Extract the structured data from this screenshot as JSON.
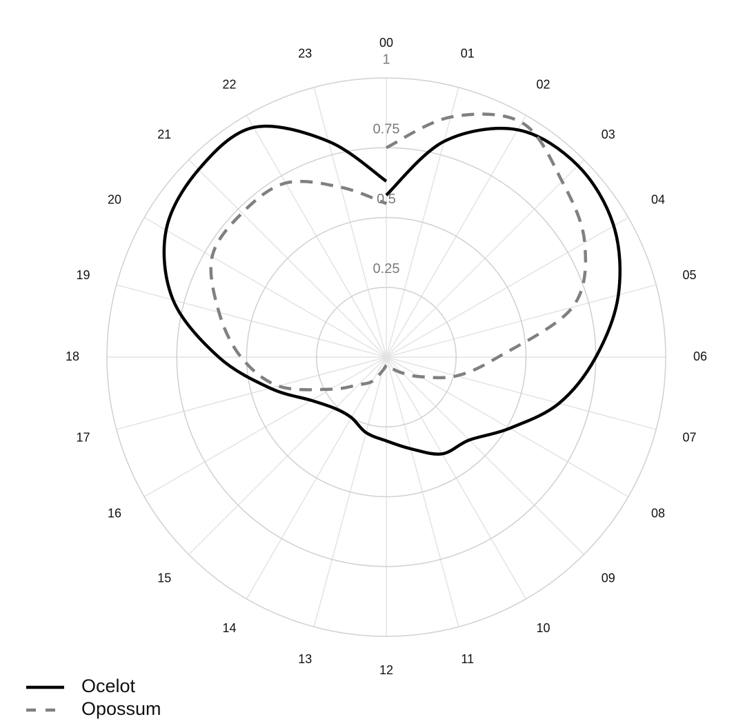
{
  "chart_data": {
    "type": "polar-line",
    "x": [
      0,
      1,
      2,
      3,
      4,
      5,
      6,
      7,
      8,
      9,
      10,
      11,
      12,
      13,
      14,
      15,
      16,
      17,
      18,
      19,
      20,
      21,
      22,
      23,
      24
    ],
    "xlim": [
      0,
      24
    ],
    "xticks": [
      {
        "value": 0,
        "label": "00"
      },
      {
        "value": 1,
        "label": "01"
      },
      {
        "value": 2,
        "label": "02"
      },
      {
        "value": 3,
        "label": "03"
      },
      {
        "value": 4,
        "label": "04"
      },
      {
        "value": 5,
        "label": "05"
      },
      {
        "value": 6,
        "label": "06"
      },
      {
        "value": 7,
        "label": "07"
      },
      {
        "value": 8,
        "label": "08"
      },
      {
        "value": 9,
        "label": "09"
      },
      10,
      11,
      12,
      13,
      14,
      15,
      16,
      17,
      18,
      19,
      20,
      21,
      22,
      23
    ],
    "ylim": [
      0,
      1
    ],
    "yticks": [
      0.25,
      0.5,
      0.75,
      1
    ],
    "grid": true,
    "legend": "bottom-left",
    "series": [
      {
        "name": "Ocelot",
        "color": "#000000",
        "dash": "solid",
        "values": [
          0.58,
          0.8,
          0.94,
          0.97,
          0.94,
          0.86,
          0.75,
          0.64,
          0.51,
          0.42,
          0.4,
          0.34,
          0.3,
          0.28,
          0.25,
          0.26,
          0.31,
          0.43,
          0.6,
          0.79,
          0.91,
          0.95,
          0.95,
          0.8,
          0.63
        ]
      },
      {
        "name": "Opossum",
        "color": "#808080",
        "dash": "dashed",
        "values": [
          0.75,
          0.89,
          0.97,
          0.89,
          0.82,
          0.69,
          0.4,
          0.26,
          0.14,
          0.08,
          0.05,
          0.03,
          0.03,
          0.05,
          0.1,
          0.14,
          0.23,
          0.4,
          0.52,
          0.62,
          0.72,
          0.73,
          0.72,
          0.63,
          0.55
        ]
      }
    ]
  }
}
